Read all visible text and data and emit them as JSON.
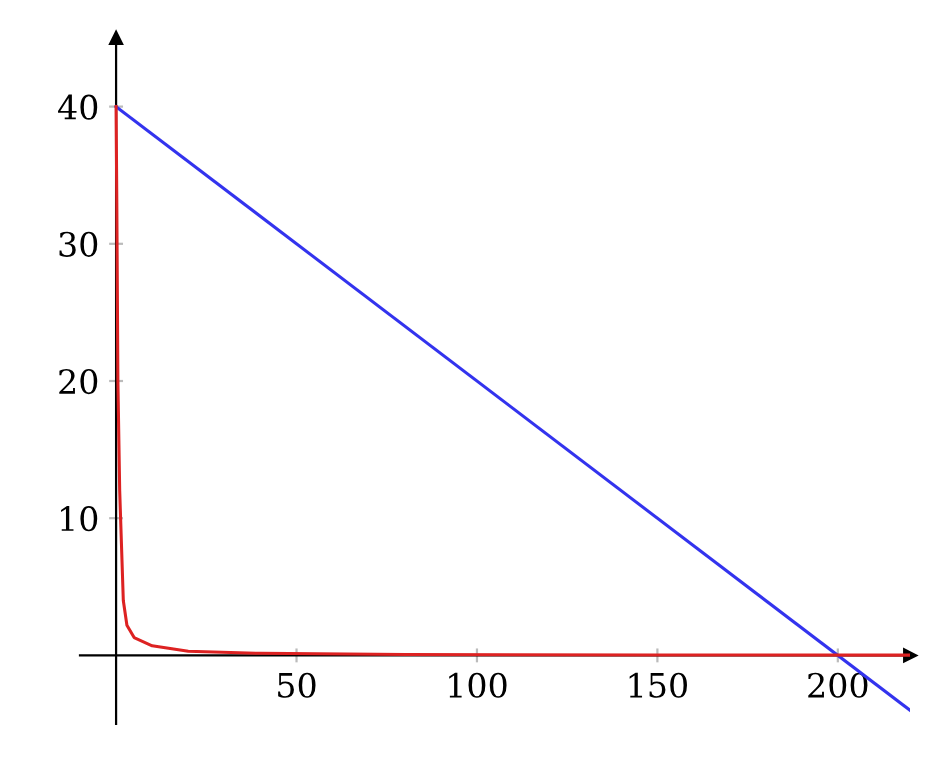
{
  "chart_data": {
    "type": "line",
    "xlim": [
      -10,
      220
    ],
    "ylim": [
      -5,
      45
    ],
    "xticks": [
      50,
      100,
      150,
      200
    ],
    "yticks": [
      10,
      20,
      30,
      40
    ],
    "grid": false,
    "marker": "none",
    "line_style": "solid",
    "series": [
      {
        "color": "#3333ee",
        "x": [
          0,
          220
        ],
        "values": [
          40,
          -4
        ]
      },
      {
        "color": "#dd2222",
        "x": [
          0,
          0.2,
          0.5,
          1,
          2,
          3,
          5,
          10,
          20,
          40,
          80,
          150,
          220
        ],
        "values": [
          40,
          33,
          20,
          12,
          4,
          2.2,
          1.3,
          0.7,
          0.3,
          0.15,
          0.07,
          0.03,
          0.02
        ]
      }
    ]
  }
}
